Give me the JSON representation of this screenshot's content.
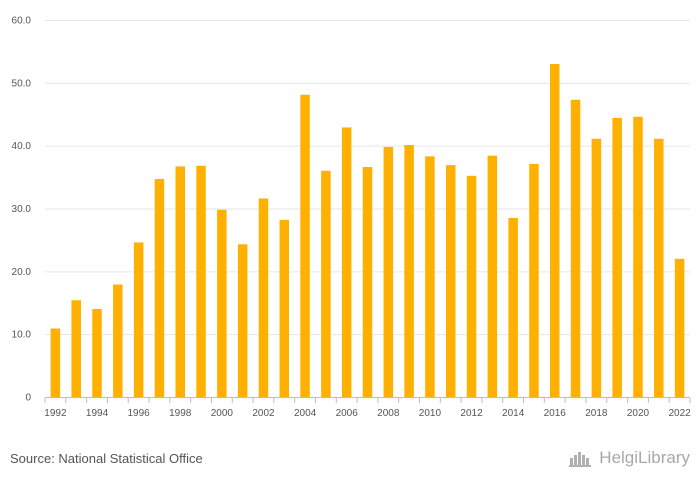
{
  "chart_data": {
    "type": "bar",
    "categories": [
      "1992",
      "1993",
      "1994",
      "1995",
      "1996",
      "1997",
      "1998",
      "1999",
      "2000",
      "2001",
      "2002",
      "2003",
      "2004",
      "2005",
      "2006",
      "2007",
      "2008",
      "2009",
      "2010",
      "2011",
      "2012",
      "2013",
      "2014",
      "2015",
      "2016",
      "2017",
      "2018",
      "2019",
      "2020",
      "2021",
      "2022"
    ],
    "values": [
      10.9,
      15.4,
      14.0,
      17.9,
      24.6,
      34.7,
      36.7,
      36.8,
      29.8,
      24.3,
      31.6,
      28.2,
      48.1,
      36.0,
      42.9,
      36.6,
      39.8,
      40.1,
      38.3,
      36.9,
      35.2,
      38.4,
      28.5,
      37.1,
      53.0,
      47.3,
      41.1,
      44.4,
      44.6,
      41.1,
      22.0
    ],
    "x_tick_labels": [
      "1992",
      "1994",
      "1996",
      "1998",
      "2000",
      "2002",
      "2004",
      "2006",
      "2008",
      "2010",
      "2012",
      "2014",
      "2016",
      "2018",
      "2020",
      "2022"
    ],
    "y_tick_labels": [
      "0",
      "10.0",
      "20.0",
      "30.0",
      "40.0",
      "50.0",
      "60.0"
    ],
    "ylim": [
      0,
      60
    ],
    "grid": true,
    "legend": "none",
    "bar_color": "#FFB000"
  },
  "footer": {
    "source": "Source: National Statistical Office",
    "brand": "HelgiLibrary"
  },
  "icons": {
    "brand_icon": "helgi-library-logo-icon"
  }
}
